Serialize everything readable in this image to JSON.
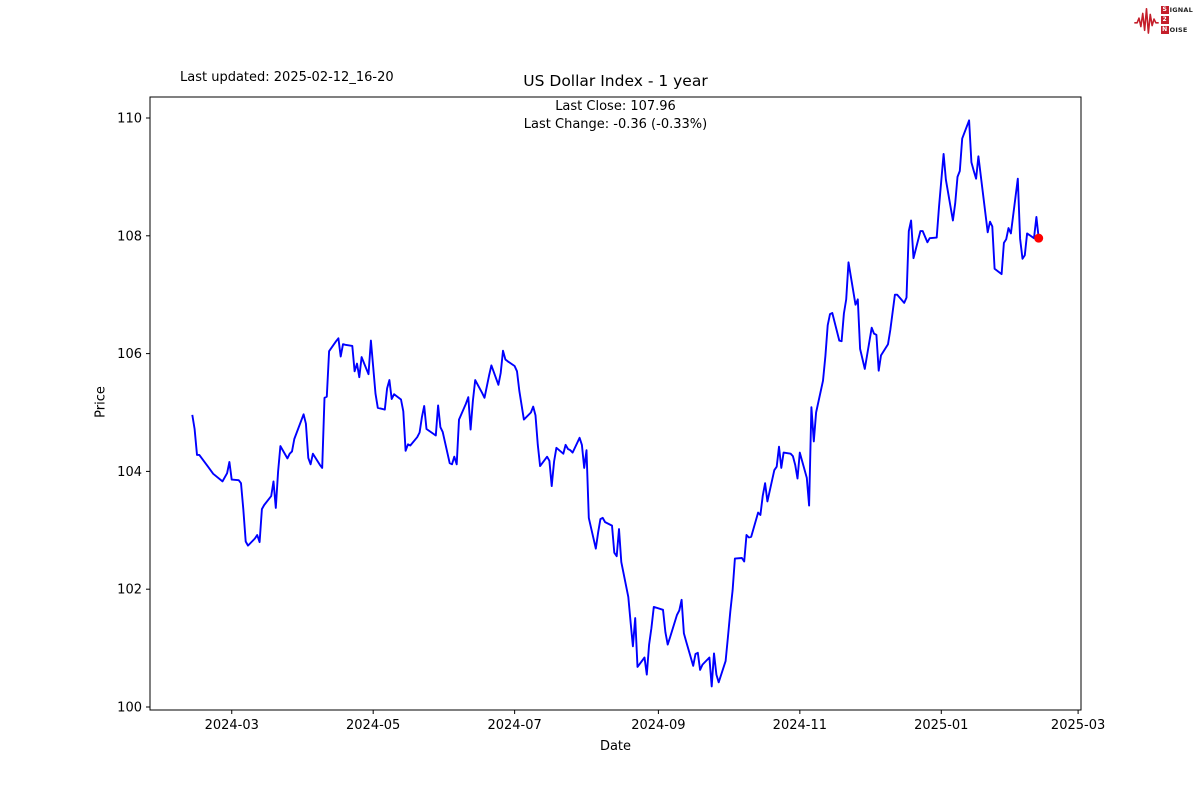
{
  "header": {
    "last_updated": "Last updated: 2025-02-12_16-20",
    "title": "US Dollar Index - 1 year",
    "subtitle_close": "Last Close: 107.96",
    "subtitle_change": "Last Change: -0.36 (-0.33%)"
  },
  "logo": {
    "word1_initial": "S",
    "word1_rest": "IGNAL",
    "middle": "2",
    "word2_initial": "N",
    "word2_rest": "OISE",
    "color": "#c41e2a"
  },
  "chart_data": {
    "type": "line",
    "title": "US Dollar Index - 1 year",
    "xlabel": "Date",
    "ylabel": "Price",
    "grid": false,
    "legend": "none",
    "line_color": "#0000ff",
    "marker": {
      "date": "2025-02-12",
      "value": 107.96,
      "color": "#ff0000"
    },
    "ylim": [
      99.95,
      110.36
    ],
    "y_ticks": [
      100,
      102,
      104,
      106,
      108,
      110
    ],
    "x_axis_range": [
      "2024-01-25T18:00:00Z",
      "2025-03-02T06:00:00Z"
    ],
    "x_ticks": [
      {
        "date": "2024-03-01",
        "label": "2024-03"
      },
      {
        "date": "2024-05-01",
        "label": "2024-05"
      },
      {
        "date": "2024-07-01",
        "label": "2024-07"
      },
      {
        "date": "2024-09-01",
        "label": "2024-09"
      },
      {
        "date": "2024-11-01",
        "label": "2024-11"
      },
      {
        "date": "2025-01-01",
        "label": "2025-01"
      },
      {
        "date": "2025-03-01",
        "label": "2025-03"
      }
    ],
    "series": [
      {
        "name": "US Dollar Index",
        "points": [
          [
            "2024-02-13",
            104.96
          ],
          [
            "2024-02-14",
            104.72
          ],
          [
            "2024-02-15",
            104.28
          ],
          [
            "2024-02-16",
            104.28
          ],
          [
            "2024-02-20",
            104.07
          ],
          [
            "2024-02-22",
            103.96
          ],
          [
            "2024-02-26",
            103.83
          ],
          [
            "2024-02-28",
            103.97
          ],
          [
            "2024-02-29",
            104.16
          ],
          [
            "2024-03-01",
            103.86
          ],
          [
            "2024-03-04",
            103.85
          ],
          [
            "2024-03-05",
            103.8
          ],
          [
            "2024-03-06",
            103.36
          ],
          [
            "2024-03-07",
            102.81
          ],
          [
            "2024-03-08",
            102.74
          ],
          [
            "2024-03-11",
            102.86
          ],
          [
            "2024-03-12",
            102.92
          ],
          [
            "2024-03-13",
            102.8
          ],
          [
            "2024-03-14",
            103.36
          ],
          [
            "2024-03-15",
            103.43
          ],
          [
            "2024-03-18",
            103.58
          ],
          [
            "2024-03-19",
            103.83
          ],
          [
            "2024-03-20",
            103.38
          ],
          [
            "2024-03-21",
            104.0
          ],
          [
            "2024-03-22",
            104.43
          ],
          [
            "2024-03-25",
            104.22
          ],
          [
            "2024-03-26",
            104.3
          ],
          [
            "2024-03-27",
            104.34
          ],
          [
            "2024-03-28",
            104.55
          ],
          [
            "2024-04-01",
            104.97
          ],
          [
            "2024-04-02",
            104.81
          ],
          [
            "2024-04-03",
            104.23
          ],
          [
            "2024-04-04",
            104.12
          ],
          [
            "2024-04-05",
            104.3
          ],
          [
            "2024-04-08",
            104.11
          ],
          [
            "2024-04-09",
            104.06
          ],
          [
            "2024-04-10",
            105.25
          ],
          [
            "2024-04-11",
            105.27
          ],
          [
            "2024-04-12",
            106.04
          ],
          [
            "2024-04-15",
            106.21
          ],
          [
            "2024-04-16",
            106.26
          ],
          [
            "2024-04-17",
            105.95
          ],
          [
            "2024-04-18",
            106.16
          ],
          [
            "2024-04-19",
            106.15
          ],
          [
            "2024-04-22",
            106.13
          ],
          [
            "2024-04-23",
            105.7
          ],
          [
            "2024-04-24",
            105.83
          ],
          [
            "2024-04-25",
            105.6
          ],
          [
            "2024-04-26",
            105.94
          ],
          [
            "2024-04-29",
            105.65
          ],
          [
            "2024-04-30",
            106.22
          ],
          [
            "2024-05-01",
            105.77
          ],
          [
            "2024-05-02",
            105.32
          ],
          [
            "2024-05-03",
            105.08
          ],
          [
            "2024-05-06",
            105.05
          ],
          [
            "2024-05-07",
            105.41
          ],
          [
            "2024-05-08",
            105.55
          ],
          [
            "2024-05-09",
            105.23
          ],
          [
            "2024-05-10",
            105.31
          ],
          [
            "2024-05-13",
            105.22
          ],
          [
            "2024-05-14",
            105.02
          ],
          [
            "2024-05-15",
            104.35
          ],
          [
            "2024-05-16",
            104.46
          ],
          [
            "2024-05-17",
            104.44
          ],
          [
            "2024-05-20",
            104.58
          ],
          [
            "2024-05-21",
            104.66
          ],
          [
            "2024-05-22",
            104.92
          ],
          [
            "2024-05-23",
            105.11
          ],
          [
            "2024-05-24",
            104.72
          ],
          [
            "2024-05-28",
            104.61
          ],
          [
            "2024-05-29",
            105.12
          ],
          [
            "2024-05-30",
            104.75
          ],
          [
            "2024-05-31",
            104.67
          ],
          [
            "2024-06-03",
            104.14
          ],
          [
            "2024-06-04",
            104.12
          ],
          [
            "2024-06-05",
            104.25
          ],
          [
            "2024-06-06",
            104.12
          ],
          [
            "2024-06-07",
            104.88
          ],
          [
            "2024-06-10",
            105.15
          ],
          [
            "2024-06-11",
            105.26
          ],
          [
            "2024-06-12",
            104.71
          ],
          [
            "2024-06-13",
            105.2
          ],
          [
            "2024-06-14",
            105.55
          ],
          [
            "2024-06-17",
            105.33
          ],
          [
            "2024-06-18",
            105.25
          ],
          [
            "2024-06-20",
            105.63
          ],
          [
            "2024-06-21",
            105.8
          ],
          [
            "2024-06-24",
            105.47
          ],
          [
            "2024-06-25",
            105.67
          ],
          [
            "2024-06-26",
            106.05
          ],
          [
            "2024-06-27",
            105.9
          ],
          [
            "2024-06-28",
            105.87
          ],
          [
            "2024-07-01",
            105.79
          ],
          [
            "2024-07-02",
            105.7
          ],
          [
            "2024-07-03",
            105.37
          ],
          [
            "2024-07-05",
            104.88
          ],
          [
            "2024-07-08",
            105.0
          ],
          [
            "2024-07-09",
            105.1
          ],
          [
            "2024-07-10",
            104.95
          ],
          [
            "2024-07-11",
            104.45
          ],
          [
            "2024-07-12",
            104.09
          ],
          [
            "2024-07-15",
            104.25
          ],
          [
            "2024-07-16",
            104.18
          ],
          [
            "2024-07-17",
            103.75
          ],
          [
            "2024-07-18",
            104.17
          ],
          [
            "2024-07-19",
            104.4
          ],
          [
            "2024-07-22",
            104.3
          ],
          [
            "2024-07-23",
            104.45
          ],
          [
            "2024-07-24",
            104.38
          ],
          [
            "2024-07-25",
            104.36
          ],
          [
            "2024-07-26",
            104.32
          ],
          [
            "2024-07-29",
            104.57
          ],
          [
            "2024-07-30",
            104.45
          ],
          [
            "2024-07-31",
            104.06
          ],
          [
            "2024-08-01",
            104.36
          ],
          [
            "2024-08-02",
            103.21
          ],
          [
            "2024-08-05",
            102.69
          ],
          [
            "2024-08-06",
            102.96
          ],
          [
            "2024-08-07",
            103.19
          ],
          [
            "2024-08-08",
            103.21
          ],
          [
            "2024-08-09",
            103.14
          ],
          [
            "2024-08-12",
            103.08
          ],
          [
            "2024-08-13",
            102.62
          ],
          [
            "2024-08-14",
            102.56
          ],
          [
            "2024-08-15",
            103.02
          ],
          [
            "2024-08-16",
            102.46
          ],
          [
            "2024-08-19",
            101.87
          ],
          [
            "2024-08-20",
            101.44
          ],
          [
            "2024-08-21",
            101.03
          ],
          [
            "2024-08-22",
            101.51
          ],
          [
            "2024-08-23",
            100.68
          ],
          [
            "2024-08-26",
            100.84
          ],
          [
            "2024-08-27",
            100.55
          ],
          [
            "2024-08-28",
            101.06
          ],
          [
            "2024-08-29",
            101.34
          ],
          [
            "2024-08-30",
            101.7
          ],
          [
            "2024-09-03",
            101.65
          ],
          [
            "2024-09-04",
            101.27
          ],
          [
            "2024-09-05",
            101.06
          ],
          [
            "2024-09-06",
            101.18
          ],
          [
            "2024-09-09",
            101.56
          ],
          [
            "2024-09-10",
            101.64
          ],
          [
            "2024-09-11",
            101.82
          ],
          [
            "2024-09-12",
            101.25
          ],
          [
            "2024-09-13",
            101.11
          ],
          [
            "2024-09-16",
            100.7
          ],
          [
            "2024-09-17",
            100.9
          ],
          [
            "2024-09-18",
            100.92
          ],
          [
            "2024-09-19",
            100.63
          ],
          [
            "2024-09-20",
            100.72
          ],
          [
            "2024-09-23",
            100.84
          ],
          [
            "2024-09-24",
            100.35
          ],
          [
            "2024-09-25",
            100.91
          ],
          [
            "2024-09-26",
            100.55
          ],
          [
            "2024-09-27",
            100.42
          ],
          [
            "2024-09-30",
            100.78
          ],
          [
            "2024-10-01",
            101.2
          ],
          [
            "2024-10-02",
            101.62
          ],
          [
            "2024-10-03",
            101.98
          ],
          [
            "2024-10-04",
            102.52
          ],
          [
            "2024-10-07",
            102.53
          ],
          [
            "2024-10-08",
            102.47
          ],
          [
            "2024-10-09",
            102.92
          ],
          [
            "2024-10-10",
            102.88
          ],
          [
            "2024-10-11",
            102.89
          ],
          [
            "2024-10-14",
            103.3
          ],
          [
            "2024-10-15",
            103.26
          ],
          [
            "2024-10-16",
            103.58
          ],
          [
            "2024-10-17",
            103.8
          ],
          [
            "2024-10-18",
            103.49
          ],
          [
            "2024-10-21",
            104.02
          ],
          [
            "2024-10-22",
            104.08
          ],
          [
            "2024-10-23",
            104.42
          ],
          [
            "2024-10-24",
            104.06
          ],
          [
            "2024-10-25",
            104.32
          ],
          [
            "2024-10-28",
            104.3
          ],
          [
            "2024-10-29",
            104.26
          ],
          [
            "2024-10-30",
            104.11
          ],
          [
            "2024-10-31",
            103.88
          ],
          [
            "2024-11-01",
            104.32
          ],
          [
            "2024-11-04",
            103.89
          ],
          [
            "2024-11-05",
            103.42
          ],
          [
            "2024-11-06",
            105.09
          ],
          [
            "2024-11-07",
            104.51
          ],
          [
            "2024-11-08",
            105.0
          ],
          [
            "2024-11-11",
            105.54
          ],
          [
            "2024-11-12",
            105.96
          ],
          [
            "2024-11-13",
            106.48
          ],
          [
            "2024-11-14",
            106.67
          ],
          [
            "2024-11-15",
            106.69
          ],
          [
            "2024-11-18",
            106.22
          ],
          [
            "2024-11-19",
            106.21
          ],
          [
            "2024-11-20",
            106.68
          ],
          [
            "2024-11-21",
            106.92
          ],
          [
            "2024-11-22",
            107.55
          ],
          [
            "2024-11-25",
            106.83
          ],
          [
            "2024-11-26",
            106.92
          ],
          [
            "2024-11-27",
            106.08
          ],
          [
            "2024-11-29",
            105.74
          ],
          [
            "2024-12-02",
            106.44
          ],
          [
            "2024-12-03",
            106.34
          ],
          [
            "2024-12-04",
            106.32
          ],
          [
            "2024-12-05",
            105.71
          ],
          [
            "2024-12-06",
            105.97
          ],
          [
            "2024-12-09",
            106.16
          ],
          [
            "2024-12-10",
            106.4
          ],
          [
            "2024-12-11",
            106.7
          ],
          [
            "2024-12-12",
            107.0
          ],
          [
            "2024-12-13",
            107.0
          ],
          [
            "2024-12-16",
            106.86
          ],
          [
            "2024-12-17",
            106.95
          ],
          [
            "2024-12-18",
            108.08
          ],
          [
            "2024-12-19",
            108.26
          ],
          [
            "2024-12-20",
            107.62
          ],
          [
            "2024-12-23",
            108.08
          ],
          [
            "2024-12-24",
            108.08
          ],
          [
            "2024-12-26",
            107.89
          ],
          [
            "2024-12-27",
            107.96
          ],
          [
            "2024-12-30",
            107.97
          ],
          [
            "2024-12-31",
            108.49
          ],
          [
            "2025-01-02",
            109.39
          ],
          [
            "2025-01-03",
            108.95
          ],
          [
            "2025-01-06",
            108.26
          ],
          [
            "2025-01-07",
            108.55
          ],
          [
            "2025-01-08",
            109.0
          ],
          [
            "2025-01-09",
            109.1
          ],
          [
            "2025-01-10",
            109.65
          ],
          [
            "2025-01-13",
            109.96
          ],
          [
            "2025-01-14",
            109.25
          ],
          [
            "2025-01-15",
            109.1
          ],
          [
            "2025-01-16",
            108.97
          ],
          [
            "2025-01-17",
            109.35
          ],
          [
            "2025-01-21",
            108.06
          ],
          [
            "2025-01-22",
            108.24
          ],
          [
            "2025-01-23",
            108.16
          ],
          [
            "2025-01-24",
            107.44
          ],
          [
            "2025-01-27",
            107.35
          ],
          [
            "2025-01-28",
            107.88
          ],
          [
            "2025-01-29",
            107.94
          ],
          [
            "2025-01-30",
            108.13
          ],
          [
            "2025-01-31",
            108.04
          ],
          [
            "2025-02-03",
            108.97
          ],
          [
            "2025-02-04",
            107.95
          ],
          [
            "2025-02-05",
            107.61
          ],
          [
            "2025-02-06",
            107.67
          ],
          [
            "2025-02-07",
            108.04
          ],
          [
            "2025-02-10",
            107.96
          ],
          [
            "2025-02-11",
            108.32
          ],
          [
            "2025-02-12",
            107.96
          ]
        ]
      }
    ]
  }
}
